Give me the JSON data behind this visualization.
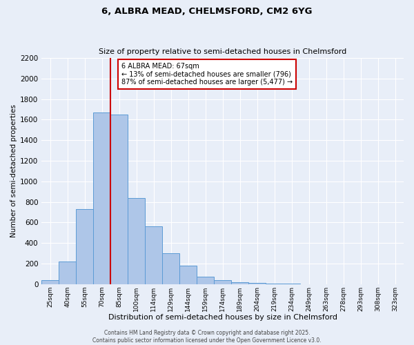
{
  "title": "6, ALBRA MEAD, CHELMSFORD, CM2 6YG",
  "subtitle": "Size of property relative to semi-detached houses in Chelmsford",
  "xlabel": "Distribution of semi-detached houses by size in Chelmsford",
  "ylabel": "Number of semi-detached properties",
  "bar_labels": [
    "25sqm",
    "40sqm",
    "55sqm",
    "70sqm",
    "85sqm",
    "100sqm",
    "114sqm",
    "129sqm",
    "144sqm",
    "159sqm",
    "174sqm",
    "189sqm",
    "204sqm",
    "219sqm",
    "234sqm",
    "249sqm",
    "263sqm",
    "278sqm",
    "293sqm",
    "308sqm",
    "323sqm"
  ],
  "bar_values": [
    40,
    220,
    730,
    1670,
    1650,
    840,
    560,
    300,
    180,
    70,
    35,
    20,
    10,
    5,
    3,
    0,
    0,
    0,
    0,
    0,
    0
  ],
  "bar_color": "#aec6e8",
  "bar_edge_color": "#5b9bd5",
  "background_color": "#e8eef8",
  "grid_color": "#ffffff",
  "ylim": [
    0,
    2200
  ],
  "yticks": [
    0,
    200,
    400,
    600,
    800,
    1000,
    1200,
    1400,
    1600,
    1800,
    2000,
    2200
  ],
  "property_line_color": "#cc0000",
  "annotation_title": "6 ALBRA MEAD: 67sqm",
  "annotation_line1": "← 13% of semi-detached houses are smaller (796)",
  "annotation_line2": "87% of semi-detached houses are larger (5,477) →",
  "annotation_box_color": "#cc0000",
  "footnote1": "Contains HM Land Registry data © Crown copyright and database right 2025.",
  "footnote2": "Contains public sector information licensed under the Open Government Licence v3.0."
}
